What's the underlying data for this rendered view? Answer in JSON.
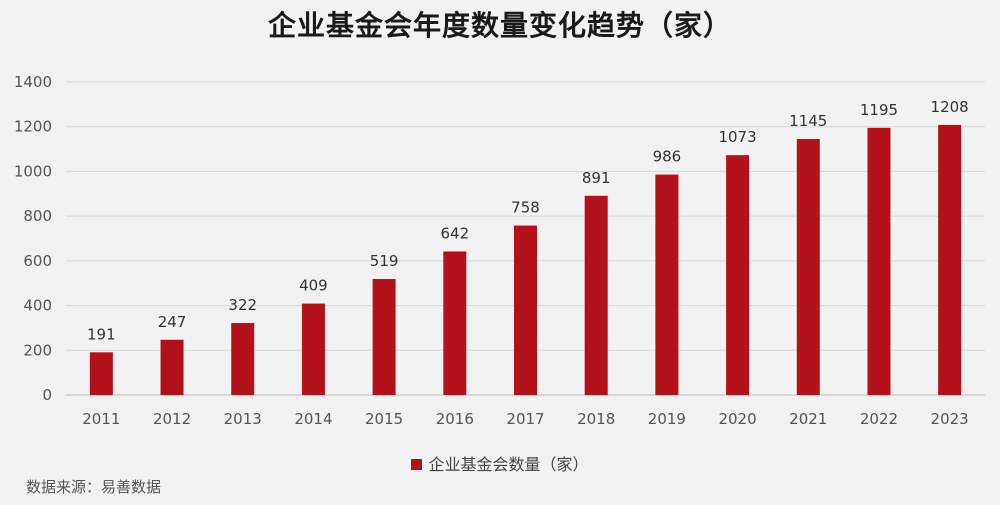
{
  "colors": {
    "bar": "#b3121a",
    "grid": "#d6d6d6",
    "axis": "#bfbfbf"
  },
  "source": "数据来源：易善数据",
  "chart_data": {
    "type": "bar",
    "title": "企业基金会年度数量变化趋势（家）",
    "xlabel": "",
    "ylabel": "",
    "categories": [
      "2011",
      "2012",
      "2013",
      "2014",
      "2015",
      "2016",
      "2017",
      "2018",
      "2019",
      "2020",
      "2021",
      "2022",
      "2023"
    ],
    "series": [
      {
        "name": "企业基金会数量（家）",
        "values": [
          191,
          247,
          322,
          409,
          519,
          642,
          758,
          891,
          986,
          1073,
          1145,
          1195,
          1208
        ]
      }
    ],
    "ylim": [
      0,
      1400
    ],
    "yticks": [
      0,
      200,
      400,
      600,
      800,
      1000,
      1200,
      1400
    ],
    "grid": true,
    "legend": "bottom-center",
    "data_labels": true
  }
}
